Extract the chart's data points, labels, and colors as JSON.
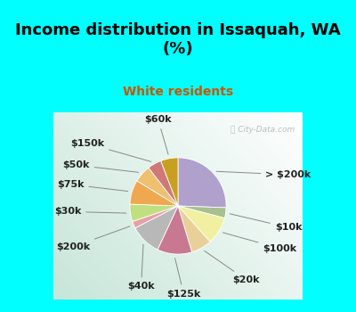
{
  "title": "Income distribution in Issaquah, WA\n(%)",
  "subtitle": "White residents",
  "title_color": "#000000",
  "subtitle_color": "#cc5500",
  "background_cyan": "#00ffff",
  "background_chart_gradient_top": "#e8f5f0",
  "background_chart_gradient_bottom": "#b8e8d8",
  "watermark": "City-Data.com",
  "labels": [
    "> $200k",
    "$10k",
    "$100k",
    "$20k",
    "$125k",
    "$40k",
    "$200k",
    "$30k",
    "$75k",
    "$50k",
    "$150k",
    "$60k"
  ],
  "values": [
    22,
    3,
    8,
    6,
    10,
    9,
    2,
    5,
    7,
    5,
    4,
    5
  ],
  "colors": [
    "#b0a0cc",
    "#a8c090",
    "#f0f0a0",
    "#e8d098",
    "#c87890",
    "#b8b8b8",
    "#e8a0a8",
    "#c0e080",
    "#f0a850",
    "#f0c070",
    "#d07878",
    "#c8a020"
  ],
  "start_angle": 90,
  "label_fontsize": 8.0,
  "title_fontsize": 13,
  "subtitle_fontsize": 10,
  "figsize": [
    4.0,
    3.5
  ],
  "dpi": 100
}
